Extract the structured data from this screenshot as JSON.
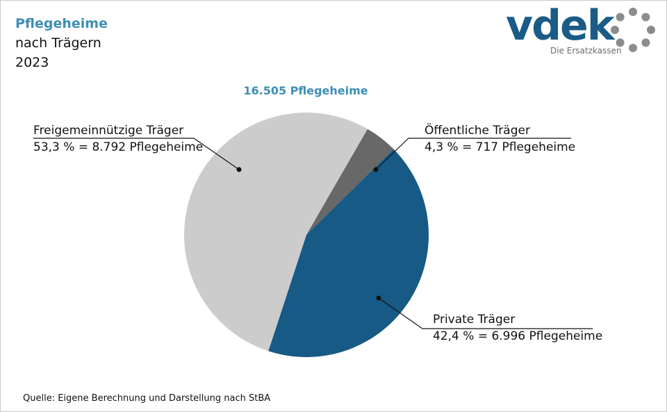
{
  "header": {
    "title": "Pflegeheime",
    "subtitle": "nach Trägern",
    "year": "2023"
  },
  "logo": {
    "wordmark": "vdek",
    "tagline": "Die Ersatzkassen"
  },
  "source": "Quelle: Eigene Berechnung und Darstellung nach StBA",
  "colors": {
    "title": "#3d8fb5",
    "brand": "#1a5c86",
    "slice_freigemeinnuetzig": "#cccccc",
    "slice_oeffentlich": "#686868",
    "slice_privat": "#175a85"
  },
  "chart_data": {
    "type": "pie",
    "title": "16.505  Pflegeheime",
    "total": 16505,
    "slices": [
      {
        "name": "Öffentliche Träger",
        "percent": 4.3,
        "count": 717,
        "detail": "4,3  % = 717  Pflegeheime",
        "color": "#686868"
      },
      {
        "name": "Private Träger",
        "percent": 42.4,
        "count": 6996,
        "detail": "42,4  % = 6.996  Pflegeheime",
        "color": "#175a85"
      },
      {
        "name": "Freigemeinnützige Träger",
        "percent": 53.3,
        "count": 8792,
        "detail": "53,3  % = 8.792  Pflegeheime",
        "color": "#cccccc"
      }
    ]
  }
}
